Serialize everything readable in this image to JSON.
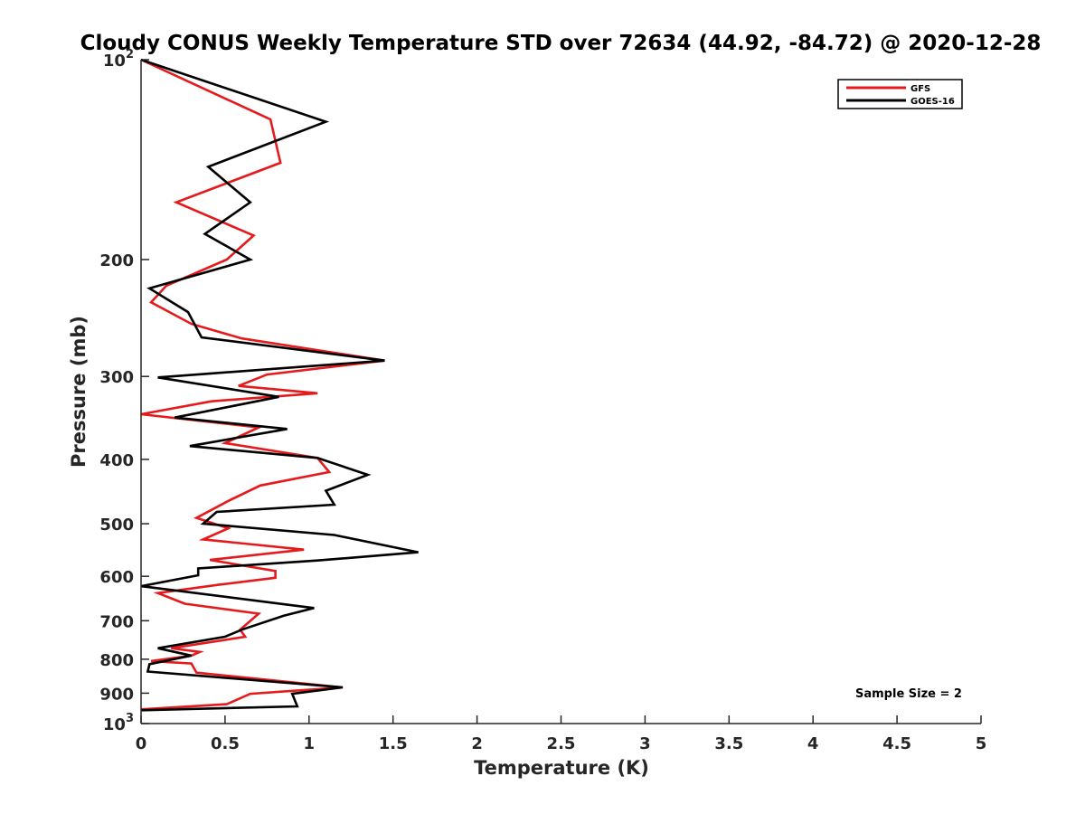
{
  "chart_data": {
    "type": "line",
    "title": "Cloudy CONUS Weekly Temperature STD over 72634 (44.92, -84.72) @ 2020-12-28",
    "xlabel": "Temperature (K)",
    "ylabel": "Pressure (mb)",
    "xlim": [
      0,
      5
    ],
    "ylim": [
      100,
      1000
    ],
    "y_scale": "log",
    "y_reversed": true,
    "x_ticks": [
      "0",
      "0.5",
      "1",
      "1.5",
      "2",
      "2.5",
      "3",
      "3.5",
      "4",
      "4.5",
      "5"
    ],
    "x_tick_values": [
      0,
      0.5,
      1,
      1.5,
      2,
      2.5,
      3,
      3.5,
      4,
      4.5,
      5
    ],
    "y_ticks": [
      {
        "value": 100,
        "base": "10",
        "exp": "2"
      },
      {
        "value": 200,
        "label": "200"
      },
      {
        "value": 300,
        "label": "300"
      },
      {
        "value": 400,
        "label": "400"
      },
      {
        "value": 500,
        "label": "500"
      },
      {
        "value": 600,
        "label": "600"
      },
      {
        "value": 700,
        "label": "700"
      },
      {
        "value": 800,
        "label": "800"
      },
      {
        "value": 900,
        "label": "900"
      },
      {
        "value": 1000,
        "base": "10",
        "exp": "3"
      }
    ],
    "grid": false,
    "legend_position": "top-right",
    "annotation": "Sample Size = 2",
    "series": [
      {
        "name": "GFS",
        "color": "#e41a1c",
        "points": [
          [
            0,
            100
          ],
          [
            0.77,
            123
          ],
          [
            0.83,
            143
          ],
          [
            0.21,
            164
          ],
          [
            0.67,
            184
          ],
          [
            0.51,
            200
          ],
          [
            0.15,
            219
          ],
          [
            0.06,
            232
          ],
          [
            0.3,
            250
          ],
          [
            0.6,
            263
          ],
          [
            1.45,
            284
          ],
          [
            0.75,
            298
          ],
          [
            0.58,
            310
          ],
          [
            1.05,
            318
          ],
          [
            0.42,
            327
          ],
          [
            0,
            342
          ],
          [
            0.7,
            358
          ],
          [
            0.5,
            378
          ],
          [
            1.05,
            398
          ],
          [
            1.12,
            418
          ],
          [
            0.71,
            438
          ],
          [
            0.52,
            462
          ],
          [
            0.33,
            490
          ],
          [
            0.52,
            508
          ],
          [
            0.37,
            528
          ],
          [
            0.97,
            547
          ],
          [
            0.41,
            567
          ],
          [
            0.8,
            589
          ],
          [
            0.8,
            603
          ],
          [
            0.46,
            618
          ],
          [
            0.1,
            636
          ],
          [
            0.26,
            660
          ],
          [
            0.7,
            683
          ],
          [
            0.59,
            722
          ],
          [
            0.62,
            740
          ],
          [
            0.18,
            770
          ],
          [
            0.35,
            780
          ],
          [
            0.3,
            790
          ],
          [
            0.06,
            805
          ],
          [
            0.3,
            812
          ],
          [
            0.33,
            838
          ],
          [
            1.2,
            882
          ],
          [
            0.65,
            902
          ],
          [
            0.51,
            935
          ],
          [
            0,
            952
          ]
        ]
      },
      {
        "name": "GOES-16",
        "color": "#000000",
        "points": [
          [
            0,
            100
          ],
          [
            1.1,
            124
          ],
          [
            0.4,
            145
          ],
          [
            0.65,
            164
          ],
          [
            0.38,
            183
          ],
          [
            0.65,
            200
          ],
          [
            0.05,
            221
          ],
          [
            0.28,
            240
          ],
          [
            0.36,
            262
          ],
          [
            1.45,
            284
          ],
          [
            0.1,
            301
          ],
          [
            0.82,
            322
          ],
          [
            0.2,
            346
          ],
          [
            0.87,
            360
          ],
          [
            0.29,
            382
          ],
          [
            1.05,
            398
          ],
          [
            1.35,
            422
          ],
          [
            1.1,
            446
          ],
          [
            1.15,
            468
          ],
          [
            0.45,
            480
          ],
          [
            0.37,
            500
          ],
          [
            1.15,
            520
          ],
          [
            1.65,
            552
          ],
          [
            1.05,
            568
          ],
          [
            0.34,
            584
          ],
          [
            0.34,
            598
          ],
          [
            0,
            621
          ],
          [
            1.03,
            670
          ],
          [
            0.85,
            688
          ],
          [
            0.6,
            722
          ],
          [
            0.5,
            740
          ],
          [
            0.1,
            770
          ],
          [
            0.2,
            780
          ],
          [
            0.3,
            790
          ],
          [
            0.05,
            814
          ],
          [
            0.04,
            835
          ],
          [
            1.2,
            882
          ],
          [
            0.9,
            902
          ],
          [
            0.93,
            942
          ],
          [
            0,
            955
          ]
        ]
      }
    ]
  }
}
